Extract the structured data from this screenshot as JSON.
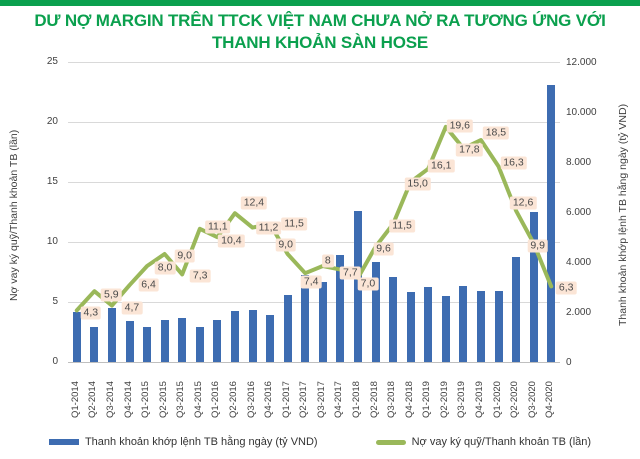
{
  "colors": {
    "accent_green": "#0ba04e",
    "bar_blue": "#3d6cb1",
    "line_green": "#9ab85a",
    "point_label_bg": "#fbe5d6",
    "gridline": "#d9d9d9"
  },
  "title_lines": [
    "DƯ NỢ MARGIN TRÊN TTCK VIỆT NAM CHƯA NỞ RA TƯƠNG ỨNG VỚI",
    "THANH KHOẢN SÀN HOSE"
  ],
  "chart_data": {
    "type": "bar",
    "title": "DƯ NỢ MARGIN TRÊN TTCK VIỆT NAM CHƯA NỞ RA TƯƠNG ỨNG VỚI THANH KHOẢN SÀN HOSE",
    "grid": true,
    "legend_position": "bottom",
    "categories": [
      "Q1-2014",
      "Q2-2014",
      "Q3-2014",
      "Q4-2014",
      "Q1-2015",
      "Q2-2015",
      "Q3-2015",
      "Q4-2015",
      "Q1-2016",
      "Q2-2016",
      "Q3-2016",
      "Q4-2016",
      "Q1-2017",
      "Q2-2017",
      "Q3-2017",
      "Q4-2017",
      "Q1-2018",
      "Q2-2018",
      "Q3-2018",
      "Q4-2018",
      "Q1-2019",
      "Q2-2019",
      "Q3-2019",
      "Q4-2019",
      "Q1-2020",
      "Q2-2020",
      "Q3-2020",
      "Q4-2020"
    ],
    "series": [
      {
        "name": "Thanh khoản khớp lệnh TB hằng ngày (tỷ VND)",
        "type": "bar",
        "axis": "right",
        "color": "#3d6cb1",
        "values": [
          2000,
          1400,
          2150,
          1650,
          1400,
          1700,
          1750,
          1400,
          1700,
          2050,
          2100,
          1900,
          2700,
          3500,
          3200,
          4300,
          6050,
          4000,
          3400,
          2800,
          3000,
          2650,
          3050,
          2850,
          2850,
          4200,
          6000,
          11100
        ]
      },
      {
        "name": "Nợ vay ký quỹ/Thanh khoản TB (lần)",
        "type": "line",
        "axis": "left",
        "color": "#9ab85a",
        "values": [
          4.3,
          5.9,
          4.7,
          6.4,
          8.0,
          9.0,
          7.3,
          11.1,
          10.4,
          12.4,
          11.2,
          11.5,
          9.0,
          7.4,
          8.0,
          7.7,
          7.0,
          9.6,
          11.5,
          15.0,
          16.1,
          19.6,
          17.8,
          18.5,
          16.3,
          12.6,
          9.9,
          6.3
        ],
        "point_labels": [
          "4,3",
          "5,9",
          "4,7",
          "6,4",
          "8,0",
          "9,0",
          "7,3",
          "11,1",
          "10,4",
          "12,4",
          "11,2",
          "11,5",
          "9,0",
          "7,4",
          "8",
          "7,7",
          "7,0",
          "9,6",
          "11,5",
          "15,0",
          "16,1",
          "19,6",
          "17,8",
          "18,5",
          "16,3",
          "12,6",
          "9,9",
          "6,3"
        ]
      }
    ],
    "left_axis": {
      "title": "Nợ vay ký quỹ/Thanh khoản TB (lần)",
      "min": 0,
      "max": 25,
      "ticks": [
        {
          "v": 25,
          "label": "25"
        },
        {
          "v": 20,
          "label": "20"
        },
        {
          "v": 15,
          "label": "15"
        },
        {
          "v": 10,
          "label": "10"
        },
        {
          "v": 5,
          "label": "5"
        },
        {
          "v": 0,
          "label": "0"
        }
      ]
    },
    "right_axis": {
      "title": "Thanh khoản khớp lệnh TB hằng ngày (tỷ VND)",
      "min": 0,
      "max": 12000,
      "ticks": [
        {
          "v": 12000,
          "label": "12.000"
        },
        {
          "v": 10000,
          "label": "10.000"
        },
        {
          "v": 8000,
          "label": "8.000"
        },
        {
          "v": 6000,
          "label": "6.000"
        },
        {
          "v": 4000,
          "label": "4.000"
        },
        {
          "v": 2000,
          "label": "2.000"
        },
        {
          "v": 0,
          "label": "0"
        }
      ]
    }
  },
  "legend": {
    "items": [
      {
        "label": "Thanh khoản khớp lệnh TB hằng ngày (tỷ VND)"
      },
      {
        "label": "Nợ vay ký quỹ/Thanh khoản TB (lần)"
      }
    ]
  }
}
